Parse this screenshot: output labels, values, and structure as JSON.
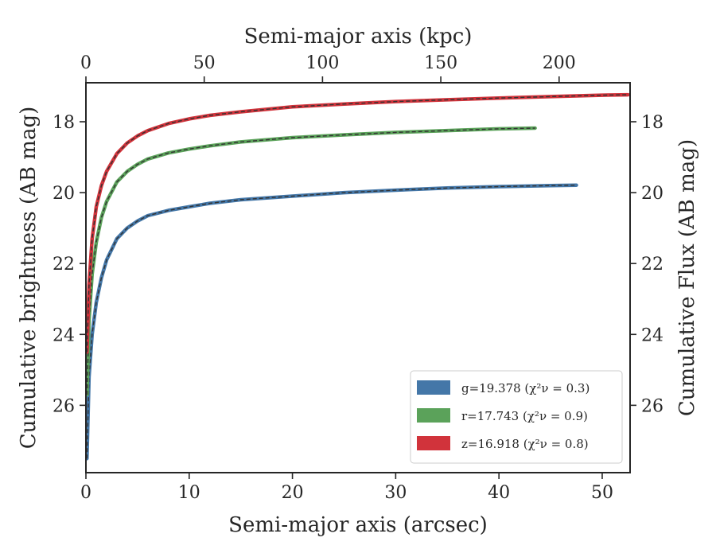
{
  "chart_data": {
    "type": "line",
    "title": "",
    "xlabel": "Semi-major axis (arcsec)",
    "ylabel": "Cumulative brightness (AB mag)",
    "x2label": "Semi-major axis (kpc)",
    "y2label": "Cumulative Flux (AB mag)",
    "xlim": [
      0,
      52.7
    ],
    "ylim": [
      27.9,
      16.9
    ],
    "x2lim": [
      0,
      230
    ],
    "xticks": [
      0,
      10,
      20,
      30,
      40,
      50
    ],
    "yticks": [
      18,
      20,
      22,
      24,
      26
    ],
    "x2ticks": [
      0,
      50,
      100,
      150,
      200
    ],
    "y_inverted": true,
    "grid": false,
    "legend_position": "bottom-right",
    "series": [
      {
        "name": "g=19.378",
        "chi_label": "(χ²ν = 0.3)",
        "color": "#4477a8",
        "x": [
          0.1,
          0.3,
          0.6,
          1,
          1.5,
          2,
          3,
          4,
          5,
          6,
          8,
          10,
          12,
          15,
          20,
          25,
          30,
          35,
          40,
          45,
          47.5
        ],
        "y": [
          27.5,
          25.2,
          24.0,
          23.1,
          22.4,
          21.9,
          21.3,
          21.0,
          20.8,
          20.65,
          20.5,
          20.4,
          20.3,
          20.2,
          20.1,
          20.0,
          19.93,
          19.87,
          19.83,
          19.8,
          19.79
        ]
      },
      {
        "name": "r=17.743",
        "chi_label": "(χ²ν = 0.9)",
        "color": "#5ba25a",
        "x": [
          0.1,
          0.3,
          0.6,
          1,
          1.5,
          2,
          3,
          4,
          5,
          6,
          8,
          10,
          12,
          15,
          20,
          25,
          30,
          35,
          40,
          43.5
        ],
        "y": [
          25.7,
          23.6,
          22.3,
          21.4,
          20.7,
          20.25,
          19.7,
          19.4,
          19.2,
          19.05,
          18.88,
          18.77,
          18.68,
          18.57,
          18.45,
          18.37,
          18.3,
          18.25,
          18.2,
          18.18
        ]
      },
      {
        "name": "z=16.918",
        "chi_label": "(χ²ν = 0.8)",
        "color": "#d1333b",
        "x": [
          0.1,
          0.3,
          0.6,
          1,
          1.5,
          2,
          3,
          4,
          5,
          6,
          8,
          10,
          12,
          15,
          20,
          25,
          30,
          35,
          40,
          45,
          50,
          52.5
        ],
        "y": [
          24.5,
          22.6,
          21.3,
          20.4,
          19.8,
          19.4,
          18.9,
          18.6,
          18.4,
          18.25,
          18.05,
          17.92,
          17.82,
          17.72,
          17.58,
          17.5,
          17.43,
          17.38,
          17.33,
          17.29,
          17.25,
          17.24
        ]
      }
    ]
  }
}
